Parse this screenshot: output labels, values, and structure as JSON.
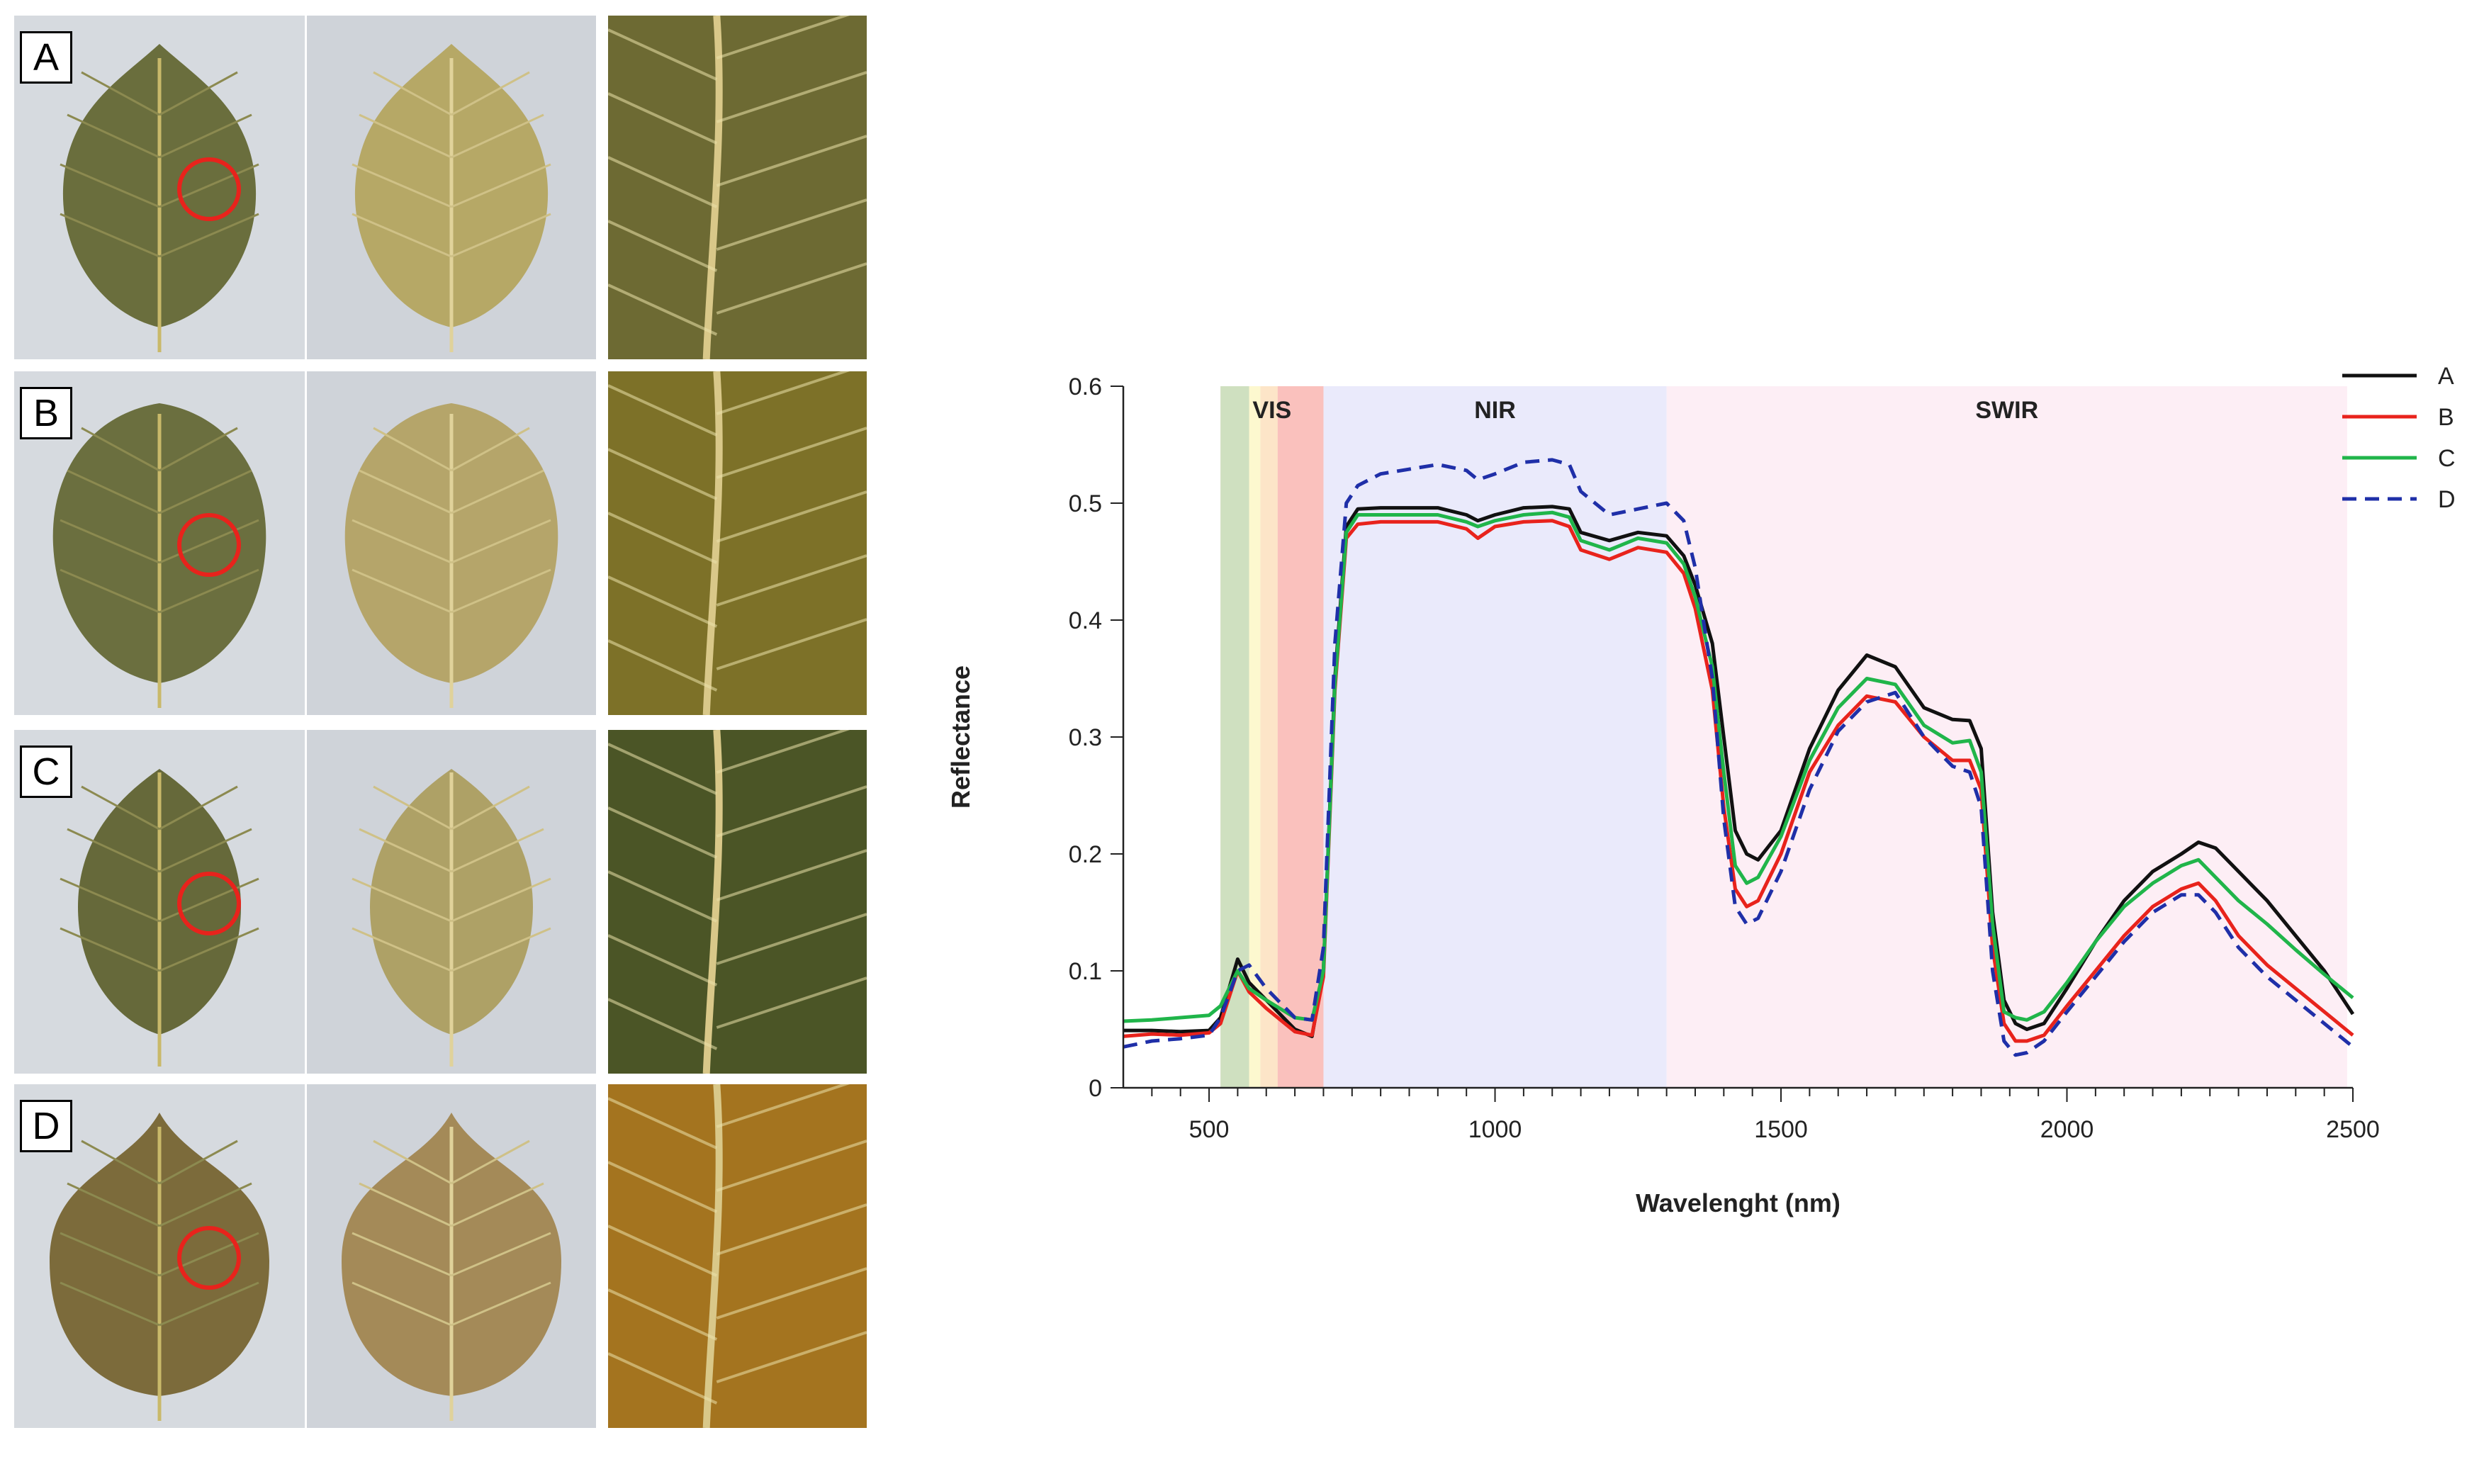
{
  "panels": [
    {
      "label": "A",
      "front_color": "#6a6e3d",
      "back_color": "#b6a866",
      "closeup_color": "#6d6a33"
    },
    {
      "label": "B",
      "front_color": "#6b6f3f",
      "back_color": "#b5a56a",
      "closeup_color": "#7d7128"
    },
    {
      "label": "C",
      "front_color": "#66693a",
      "back_color": "#aea166",
      "closeup_color": "#4b5526"
    },
    {
      "label": "D",
      "front_color": "#7c6b3b",
      "back_color": "#a48a58",
      "closeup_color": "#a4741f"
    }
  ],
  "colors": {
    "photo_background_a": "#d6dadf",
    "photo_background_b": "#cfd3d9",
    "circle": "#e8231c"
  },
  "chart_data": {
    "type": "line",
    "xlabel": "Wavelenght (nm)",
    "ylabel": "Reflectance",
    "xlim": [
      350,
      2500
    ],
    "ylim": [
      0,
      0.6
    ],
    "x_ticks": [
      500,
      1000,
      1500,
      2000,
      2500
    ],
    "y_ticks": [
      0,
      0.1,
      0.2,
      0.3,
      0.4,
      0.5,
      0.6
    ],
    "y_tick_labels": [
      "0",
      "0.1",
      "0.2",
      "0.3",
      "0.4",
      "0.5",
      "0.6"
    ],
    "regions": [
      {
        "name": "VIS",
        "range": [
          520,
          700
        ],
        "color": "#f6d9d4"
      },
      {
        "name": "NIR",
        "range": [
          700,
          1300
        ],
        "color": "#eaeafb"
      },
      {
        "name": "SWIR",
        "range": [
          1300,
          2490
        ],
        "color": "#fdeef5"
      }
    ],
    "vis_bands": [
      {
        "range": [
          520,
          570
        ],
        "color": "#cfe0c0"
      },
      {
        "range": [
          570,
          590
        ],
        "color": "#fdf8cf"
      },
      {
        "range": [
          590,
          620
        ],
        "color": "#fde5c8"
      },
      {
        "range": [
          620,
          700
        ],
        "color": "#fac1bd"
      }
    ],
    "x": [
      350,
      400,
      450,
      500,
      520,
      550,
      570,
      600,
      650,
      680,
      700,
      720,
      740,
      760,
      800,
      900,
      950,
      970,
      1000,
      1050,
      1100,
      1130,
      1150,
      1200,
      1250,
      1300,
      1330,
      1350,
      1380,
      1400,
      1420,
      1440,
      1460,
      1500,
      1550,
      1600,
      1650,
      1700,
      1750,
      1800,
      1830,
      1850,
      1870,
      1890,
      1910,
      1930,
      1960,
      2000,
      2050,
      2100,
      2150,
      2200,
      2230,
      2260,
      2300,
      2350,
      2400,
      2450,
      2500
    ],
    "series": [
      {
        "name": "A",
        "color": "#111111",
        "dash": false,
        "values": [
          0.049,
          0.049,
          0.048,
          0.049,
          0.06,
          0.11,
          0.09,
          0.075,
          0.05,
          0.044,
          0.1,
          0.35,
          0.48,
          0.495,
          0.496,
          0.496,
          0.49,
          0.485,
          0.49,
          0.496,
          0.497,
          0.495,
          0.475,
          0.468,
          0.475,
          0.472,
          0.455,
          0.43,
          0.38,
          0.3,
          0.22,
          0.2,
          0.195,
          0.22,
          0.29,
          0.34,
          0.37,
          0.36,
          0.325,
          0.315,
          0.314,
          0.29,
          0.15,
          0.075,
          0.055,
          0.05,
          0.055,
          0.085,
          0.125,
          0.16,
          0.185,
          0.2,
          0.21,
          0.205,
          0.185,
          0.16,
          0.13,
          0.1,
          0.063
        ]
      },
      {
        "name": "B",
        "color": "#e8231c",
        "dash": false,
        "values": [
          0.044,
          0.046,
          0.045,
          0.047,
          0.055,
          0.1,
          0.082,
          0.068,
          0.048,
          0.045,
          0.095,
          0.34,
          0.47,
          0.482,
          0.484,
          0.484,
          0.478,
          0.47,
          0.48,
          0.484,
          0.485,
          0.48,
          0.46,
          0.452,
          0.462,
          0.458,
          0.44,
          0.41,
          0.34,
          0.24,
          0.17,
          0.155,
          0.16,
          0.2,
          0.27,
          0.31,
          0.335,
          0.33,
          0.3,
          0.28,
          0.28,
          0.255,
          0.12,
          0.055,
          0.04,
          0.04,
          0.045,
          0.07,
          0.1,
          0.13,
          0.155,
          0.17,
          0.175,
          0.16,
          0.13,
          0.105,
          0.085,
          0.065,
          0.045
        ]
      },
      {
        "name": "C",
        "color": "#20b54a",
        "dash": false,
        "values": [
          0.057,
          0.058,
          0.06,
          0.062,
          0.07,
          0.1,
          0.085,
          0.075,
          0.06,
          0.058,
          0.1,
          0.345,
          0.475,
          0.49,
          0.49,
          0.49,
          0.484,
          0.48,
          0.485,
          0.49,
          0.492,
          0.488,
          0.468,
          0.46,
          0.47,
          0.466,
          0.448,
          0.42,
          0.36,
          0.27,
          0.19,
          0.175,
          0.18,
          0.215,
          0.28,
          0.325,
          0.35,
          0.345,
          0.31,
          0.295,
          0.297,
          0.27,
          0.14,
          0.065,
          0.06,
          0.058,
          0.065,
          0.09,
          0.125,
          0.155,
          0.175,
          0.19,
          0.195,
          0.18,
          0.16,
          0.14,
          0.118,
          0.097,
          0.077
        ]
      },
      {
        "name": "D",
        "color": "#1f2fa8",
        "dash": true,
        "values": [
          0.035,
          0.04,
          0.042,
          0.045,
          0.06,
          0.1,
          0.105,
          0.085,
          0.06,
          0.058,
          0.12,
          0.38,
          0.5,
          0.515,
          0.525,
          0.533,
          0.528,
          0.52,
          0.525,
          0.535,
          0.537,
          0.533,
          0.51,
          0.49,
          0.495,
          0.5,
          0.485,
          0.445,
          0.35,
          0.23,
          0.155,
          0.14,
          0.145,
          0.185,
          0.255,
          0.305,
          0.33,
          0.338,
          0.3,
          0.275,
          0.27,
          0.24,
          0.1,
          0.04,
          0.028,
          0.03,
          0.04,
          0.065,
          0.095,
          0.125,
          0.15,
          0.165,
          0.165,
          0.15,
          0.12,
          0.095,
          0.075,
          0.055,
          0.035
        ]
      }
    ]
  }
}
